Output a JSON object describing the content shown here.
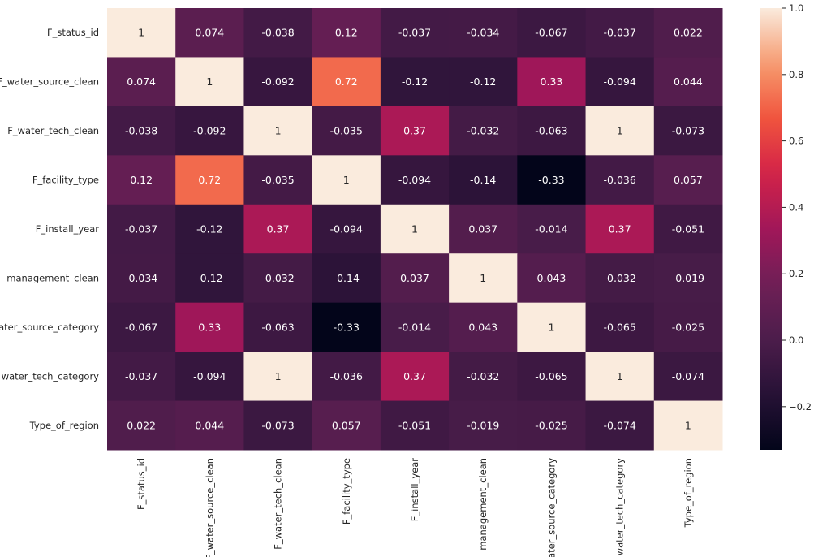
{
  "chart_data": {
    "type": "heatmap",
    "title": "",
    "xlabel": "",
    "ylabel": "",
    "rows": [
      "F_status_id",
      "F_water_source_clean",
      "F_water_tech_clean",
      "F_facility_type",
      "F_install_year",
      "management_clean",
      "water_source_category",
      "water_tech_category",
      "Type_of_region"
    ],
    "columns": [
      "F_status_id",
      "F_water_source_clean",
      "F_water_tech_clean",
      "F_facility_type",
      "F_install_year",
      "management_clean",
      "water_source_category",
      "water_tech_category",
      "Type_of_region"
    ],
    "values": [
      [
        1,
        0.074,
        -0.038,
        0.12,
        -0.037,
        -0.034,
        -0.067,
        -0.037,
        0.022
      ],
      [
        0.074,
        1,
        -0.092,
        0.72,
        -0.12,
        -0.12,
        0.33,
        -0.094,
        0.044
      ],
      [
        -0.038,
        -0.092,
        1,
        -0.035,
        0.37,
        -0.032,
        -0.063,
        1,
        -0.073
      ],
      [
        0.12,
        0.72,
        -0.035,
        1,
        -0.094,
        -0.14,
        -0.33,
        -0.036,
        0.057
      ],
      [
        -0.037,
        -0.12,
        0.37,
        -0.094,
        1,
        0.037,
        -0.014,
        0.37,
        -0.051
      ],
      [
        -0.034,
        -0.12,
        -0.032,
        -0.14,
        0.037,
        1,
        0.043,
        -0.032,
        -0.019
      ],
      [
        -0.067,
        0.33,
        -0.063,
        -0.33,
        -0.014,
        0.043,
        1,
        -0.065,
        -0.025
      ],
      [
        -0.037,
        -0.094,
        1,
        -0.036,
        0.37,
        -0.032,
        -0.065,
        1,
        -0.074
      ],
      [
        0.022,
        0.044,
        -0.073,
        0.057,
        -0.051,
        -0.019,
        -0.025,
        -0.074,
        1
      ]
    ],
    "value_labels": [
      [
        "1",
        "0.074",
        "-0.038",
        "0.12",
        "-0.037",
        "-0.034",
        "-0.067",
        "-0.037",
        "0.022"
      ],
      [
        "0.074",
        "1",
        "-0.092",
        "0.72",
        "-0.12",
        "-0.12",
        "0.33",
        "-0.094",
        "0.044"
      ],
      [
        "-0.038",
        "-0.092",
        "1",
        "-0.035",
        "0.37",
        "-0.032",
        "-0.063",
        "1",
        "-0.073"
      ],
      [
        "0.12",
        "0.72",
        "-0.035",
        "1",
        "-0.094",
        "-0.14",
        "-0.33",
        "-0.036",
        "0.057"
      ],
      [
        "-0.037",
        "-0.12",
        "0.37",
        "-0.094",
        "1",
        "0.037",
        "-0.014",
        "0.37",
        "-0.051"
      ],
      [
        "-0.034",
        "-0.12",
        "-0.032",
        "-0.14",
        "0.037",
        "1",
        "0.043",
        "-0.032",
        "-0.019"
      ],
      [
        "-0.067",
        "0.33",
        "-0.063",
        "-0.33",
        "-0.014",
        "0.043",
        "1",
        "-0.065",
        "-0.025"
      ],
      [
        "-0.037",
        "-0.094",
        "1",
        "-0.036",
        "0.37",
        "-0.032",
        "-0.065",
        "1",
        "-0.074"
      ],
      [
        "0.022",
        "0.044",
        "-0.073",
        "0.057",
        "-0.051",
        "-0.019",
        "-0.025",
        "-0.074",
        "1"
      ]
    ],
    "colormap": "rocket",
    "vmin": -0.33,
    "vmax": 1,
    "colorbar": {
      "ticks": [
        -0.2,
        0.0,
        0.2,
        0.4,
        0.6,
        0.8,
        1.0
      ],
      "tick_labels": [
        "−0.2",
        "0.0",
        "0.2",
        "0.4",
        "0.6",
        "0.8",
        "1.0"
      ],
      "position": "right"
    },
    "grid": false,
    "legend": "colorbar-right"
  }
}
